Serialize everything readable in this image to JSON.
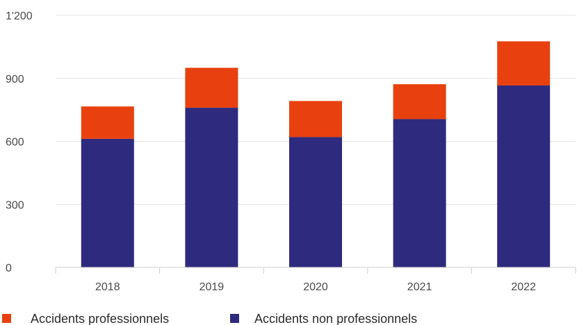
{
  "chart_data": {
    "type": "bar",
    "stacked": true,
    "categories": [
      "2018",
      "2019",
      "2020",
      "2021",
      "2022"
    ],
    "series": [
      {
        "name": "Accidents non professionnels",
        "color": "#2e2a7e",
        "values": [
          612,
          760,
          620,
          706,
          866
        ]
      },
      {
        "name": "Accidents professionnels",
        "color": "#e8410f",
        "values": [
          154,
          190,
          172,
          166,
          210
        ]
      }
    ],
    "ylim": [
      0,
      1200
    ],
    "yticks": [
      0,
      300,
      600,
      900,
      1200
    ],
    "ytick_labels": [
      "0",
      "300",
      "600",
      "900",
      "1'200"
    ],
    "grid": true,
    "legend": {
      "placement": "bottom-left",
      "entries": [
        {
          "label": "Accidents professionnels",
          "color": "#e8410f"
        },
        {
          "label": "Accidents non professionnels",
          "color": "#2e2a7e"
        }
      ]
    }
  }
}
